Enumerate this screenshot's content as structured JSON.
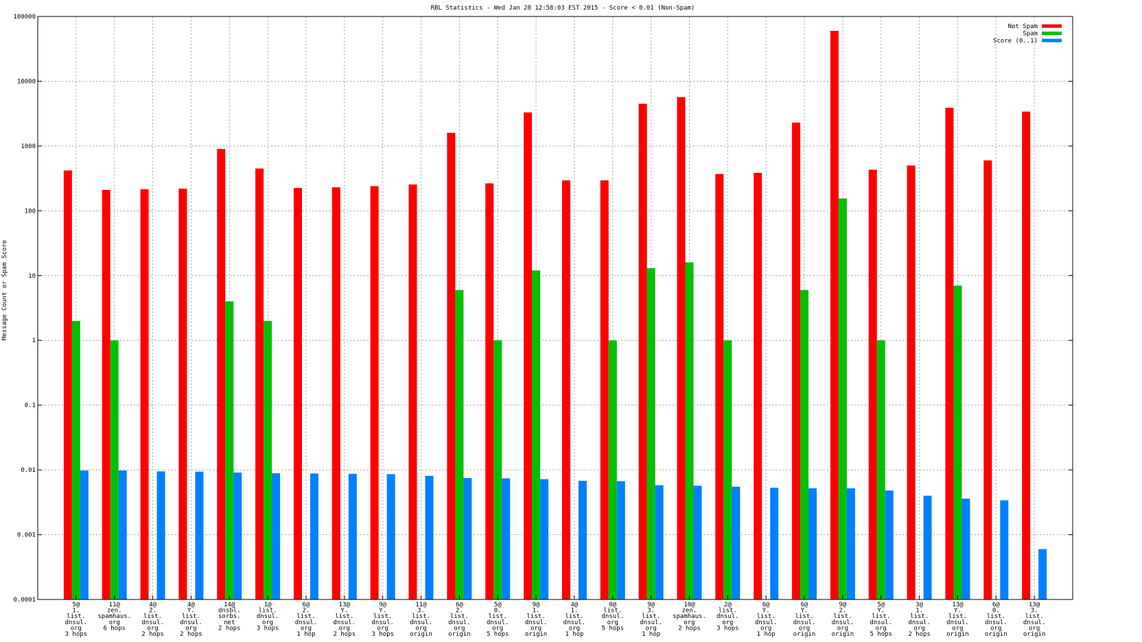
{
  "chart_data": {
    "type": "bar",
    "title": "RBL Statistics - Wed Jan 28 12:58:03 EST 2015 - Score < 0.01 (Non-Spam)",
    "xlabel": "",
    "ylabel": "Message Count or Spam Score",
    "yscale": "log",
    "ylim": [
      0.0001,
      100000
    ],
    "yticks": [
      "100000",
      "10000",
      "1000",
      "100",
      "10",
      "1",
      "0.1",
      "0.01",
      "0.001",
      "0.0001"
    ],
    "grid": true,
    "legend_position": "top-right",
    "categories": [
      [
        "5@",
        "1.",
        "list.",
        "dnsul.",
        "org",
        "3 hops"
      ],
      [
        "11@",
        "zen.",
        "spamhaus.",
        "org",
        "6 hops"
      ],
      [
        "4@",
        "2.",
        "list.",
        "dnsul.",
        "org",
        "2 hops"
      ],
      [
        "4@",
        "Y.",
        "list.",
        "dnsul.",
        "org",
        "2 hops"
      ],
      [
        "14@",
        "dnsbl.",
        "sorbs.",
        "net",
        "2 hops"
      ],
      [
        "1@",
        "list.",
        "dnsul.",
        "org",
        "3 hops"
      ],
      [
        "6@",
        "2.",
        "list.",
        "dnsul.",
        "org",
        "1 hop"
      ],
      [
        "13@",
        "Y.",
        "list.",
        "dnsul.",
        "org",
        "2 hops"
      ],
      [
        "9@",
        "Y.",
        "list.",
        "dnsul.",
        "org",
        "3 hops"
      ],
      [
        "11@",
        "3.",
        "list.",
        "dnsul.",
        "org",
        "origin"
      ],
      [
        "6@",
        "2.",
        "list.",
        "dnsul.",
        "org",
        "origin"
      ],
      [
        "5@",
        "0.",
        "list.",
        "dnsul.",
        "org",
        "5 hops"
      ],
      [
        "9@",
        "1.",
        "list.",
        "dnsul.",
        "org",
        "origin"
      ],
      [
        "4@",
        "1.",
        "list.",
        "dnsul.",
        "org",
        "1 hop"
      ],
      [
        "0@",
        "list.",
        "dnsul.",
        "org",
        "5 hops"
      ],
      [
        "9@",
        "3.",
        "list.",
        "dnsul.",
        "org",
        "1 hop"
      ],
      [
        "10@",
        "zen.",
        "spamhaus.",
        "org",
        "2 hops"
      ],
      [
        "2@",
        "list.",
        "dnsul.",
        "org",
        "3 hops"
      ],
      [
        "6@",
        "Y.",
        "list.",
        "dnsul.",
        "org",
        "1 hop"
      ],
      [
        "6@",
        "Y.",
        "list.",
        "dnsul.",
        "org",
        "origin"
      ],
      [
        "9@",
        "2.",
        "list.",
        "dnsul.",
        "org",
        "origin"
      ],
      [
        "5@",
        "Y.",
        "list.",
        "dnsul.",
        "org",
        "5 hops"
      ],
      [
        "3@",
        "1.",
        "list.",
        "dnsul.",
        "org",
        "2 hops"
      ],
      [
        "13@",
        "Y.",
        "list.",
        "dnsul.",
        "org",
        "origin"
      ],
      [
        "6@",
        "0.",
        "list.",
        "dnsul.",
        "org",
        "origin"
      ],
      [
        "13@",
        "3.",
        "list.",
        "dnsul.",
        "org",
        "origin"
      ]
    ],
    "series": [
      {
        "name": "Not Spam",
        "color": "#ff0000",
        "values": [
          420,
          210,
          215,
          220,
          900,
          450,
          225,
          230,
          240,
          255,
          1600,
          265,
          3300,
          295,
          295,
          4500,
          5700,
          370,
          385,
          2300,
          60000,
          430,
          500,
          3900,
          600,
          3400
        ]
      },
      {
        "name": "Spam",
        "color": "#00c000",
        "values": [
          2,
          1,
          null,
          null,
          4,
          2,
          null,
          null,
          null,
          null,
          6,
          1,
          12,
          null,
          1,
          13,
          16,
          1,
          null,
          6,
          155,
          1,
          null,
          7,
          null,
          null
        ]
      },
      {
        "name": "Score (0..1)",
        "color": "#0080ff",
        "values": [
          0.0098,
          0.0098,
          0.0095,
          0.0094,
          0.0091,
          0.0089,
          0.0088,
          0.0087,
          0.0086,
          0.0081,
          0.0075,
          0.0074,
          0.0072,
          0.0068,
          0.0067,
          0.0058,
          0.0057,
          0.0055,
          0.0053,
          0.0052,
          0.0052,
          0.0048,
          0.004,
          0.0036,
          0.0034,
          0.0006
        ]
      }
    ]
  }
}
